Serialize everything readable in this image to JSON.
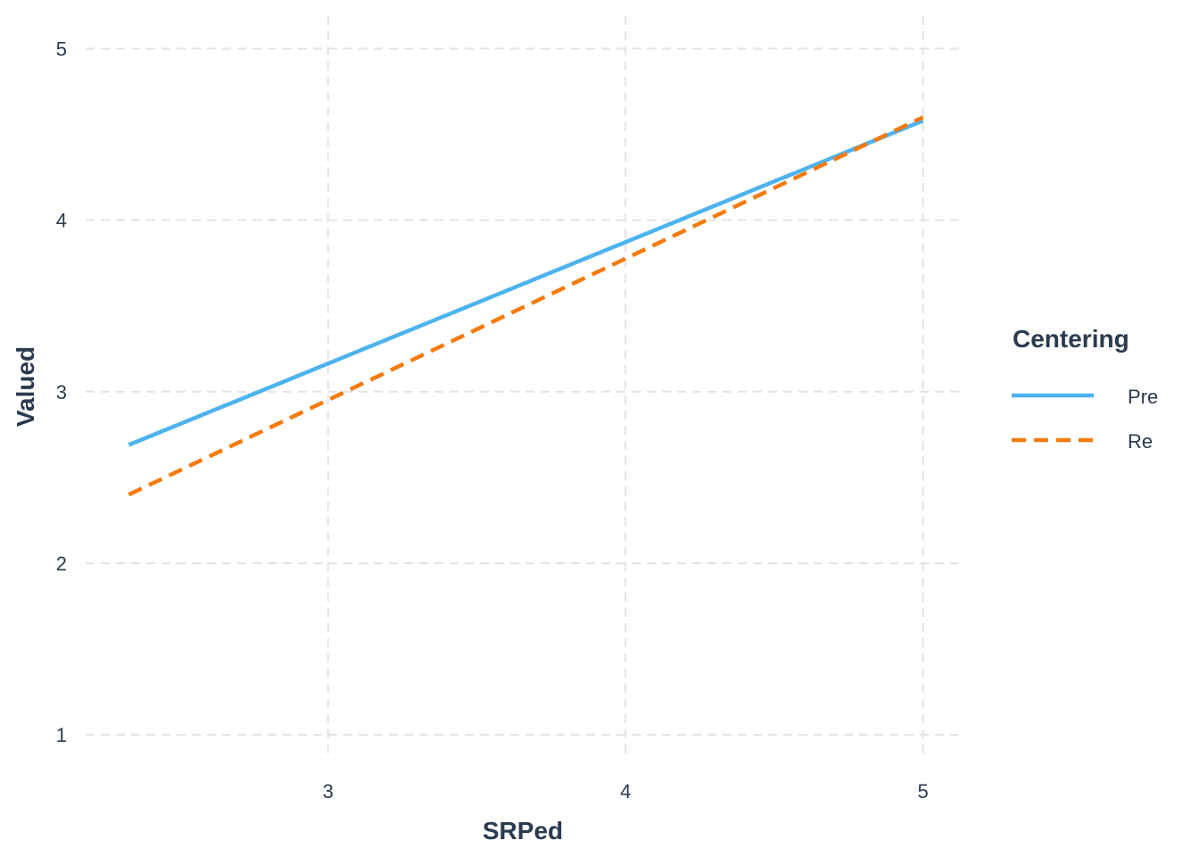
{
  "chart_data": {
    "type": "line",
    "xlabel": "SRPed",
    "ylabel": "Valued",
    "xlim": [
      2.185,
      5.13
    ],
    "ylim": [
      0.86,
      5.19
    ],
    "x_ticks": [
      3,
      4,
      5
    ],
    "y_ticks": [
      1,
      2,
      3,
      4,
      5
    ],
    "x_tick_labels": [
      "3",
      "4",
      "5"
    ],
    "y_tick_labels": [
      "1",
      "2",
      "3",
      "4",
      "5"
    ],
    "grid": true,
    "legend": {
      "title": "Centering",
      "position": "right"
    },
    "series": [
      {
        "name": "Pre",
        "color": "#4db3f0",
        "line_style": "solid",
        "x": [
          2.33,
          5.0
        ],
        "y": [
          2.69,
          4.58
        ]
      },
      {
        "name": "Re",
        "color": "#f47b0d",
        "line_style": "dashed",
        "x": [
          2.33,
          5.0
        ],
        "y": [
          2.4,
          4.6
        ]
      }
    ]
  }
}
